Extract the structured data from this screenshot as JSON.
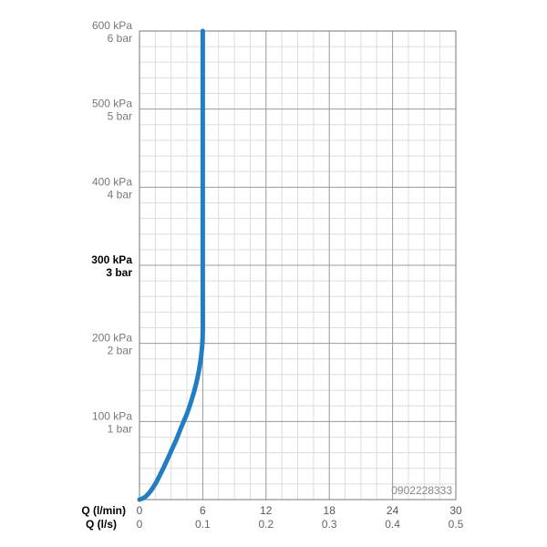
{
  "chart_data": {
    "type": "line",
    "title": "",
    "xlim": [
      0,
      30
    ],
    "ylim": [
      0,
      600
    ],
    "y_ticks": [
      {
        "value": 600,
        "kpa": "600 kPa",
        "bar": "6 bar",
        "bold": false
      },
      {
        "value": 500,
        "kpa": "500 kPa",
        "bar": "5 bar",
        "bold": false
      },
      {
        "value": 400,
        "kpa": "400 kPa",
        "bar": "4 bar",
        "bold": false
      },
      {
        "value": 300,
        "kpa": "300 kPa",
        "bar": "3 bar",
        "bold": true
      },
      {
        "value": 200,
        "kpa": "200 kPa",
        "bar": "2 bar",
        "bold": false
      },
      {
        "value": 100,
        "kpa": "100 kPa",
        "bar": "1 bar",
        "bold": false
      }
    ],
    "x_ticks": [
      {
        "value": 0,
        "lpm": "0",
        "lps": "0"
      },
      {
        "value": 6,
        "lpm": "6",
        "lps": "0.1"
      },
      {
        "value": 12,
        "lpm": "12",
        "lps": "0.2"
      },
      {
        "value": 18,
        "lpm": "18",
        "lps": "0.3"
      },
      {
        "value": 24,
        "lpm": "24",
        "lps": "0.4"
      },
      {
        "value": 30,
        "lpm": "30",
        "lps": "0.5"
      }
    ],
    "x_axis_label_lpm": "Q (l/min)",
    "x_axis_label_lps": "Q (l/s)",
    "grid": true,
    "series": [
      {
        "color": "#1f7ec4",
        "x": [
          0,
          0.5,
          1.0,
          1.5,
          2.0,
          2.5,
          3.0,
          3.5,
          4.0,
          4.5,
          5.0,
          5.4,
          5.7,
          5.9,
          6.0,
          6.0,
          6.0
        ],
        "y": [
          0,
          3,
          10,
          20,
          33,
          47,
          62,
          77,
          94,
          110,
          130,
          150,
          170,
          190,
          215,
          300,
          600
        ]
      }
    ],
    "watermark": "0902228333"
  }
}
